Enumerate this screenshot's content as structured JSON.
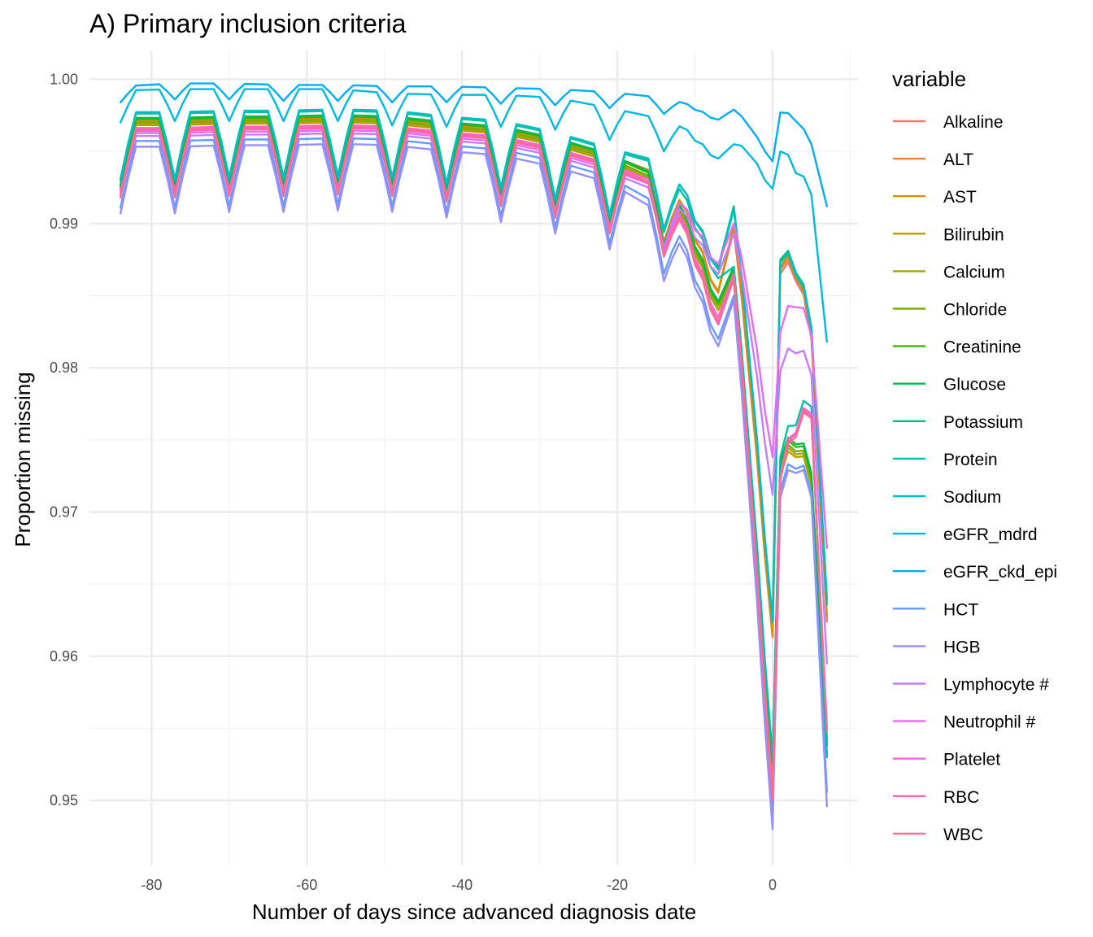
{
  "chart_data": {
    "type": "line",
    "title": "A) Primary inclusion criteria",
    "xlabel": "Number of days since advanced diagnosis date",
    "ylabel": "Proportion missing",
    "xlim": [
      -88,
      11
    ],
    "ylim": [
      0.9455,
      1.002
    ],
    "x_ticks": [
      -80,
      -60,
      -40,
      -20,
      0
    ],
    "x_tick_labels": [
      "-80",
      "-60",
      "-40",
      "-20",
      "0"
    ],
    "y_ticks": [
      0.95,
      0.96,
      0.97,
      0.98,
      0.99,
      1.0
    ],
    "y_tick_labels": [
      "0.95",
      "0.96",
      "0.97",
      "0.98",
      "0.99",
      "1.00"
    ],
    "grid": true,
    "legend_title": "variable",
    "legend_position": "right",
    "x": [
      -84,
      -77,
      -70,
      -63,
      -56,
      -49,
      -42,
      -35,
      -28,
      -21,
      -14,
      -7,
      -5,
      0,
      1,
      3,
      5,
      7
    ],
    "series": [
      {
        "name": "Alkaline",
        "color": "#F8766D",
        "base": [
          0.995,
          0.995,
          0.9951,
          0.9951,
          0.9952,
          0.9951,
          0.9947,
          0.9944,
          0.9936,
          0.9925,
          0.9911,
          0.9853,
          0.9895,
          0.9613,
          0.9865,
          0.986,
          0.982,
          0.9624
        ],
        "amp": 0.0025
      },
      {
        "name": "ALT",
        "color": "#EA8331",
        "base": [
          0.995,
          0.995,
          0.9951,
          0.9951,
          0.9952,
          0.9951,
          0.9947,
          0.9944,
          0.9936,
          0.9925,
          0.9912,
          0.9852,
          0.9898,
          0.9614,
          0.9868,
          0.9862,
          0.9822,
          0.9626
        ],
        "amp": 0.0025
      },
      {
        "name": "AST",
        "color": "#D89000",
        "base": [
          0.9951,
          0.9951,
          0.9952,
          0.9952,
          0.9953,
          0.9952,
          0.9948,
          0.9945,
          0.9937,
          0.9926,
          0.9912,
          0.9853,
          0.9899,
          0.9615,
          0.987,
          0.9864,
          0.9824,
          0.9628
        ],
        "amp": 0.0025
      },
      {
        "name": "Bilirubin",
        "color": "#C09B00",
        "base": [
          0.9947,
          0.9947,
          0.9948,
          0.9948,
          0.9949,
          0.9948,
          0.9944,
          0.9941,
          0.9933,
          0.9922,
          0.9905,
          0.984,
          0.986,
          0.952,
          0.9725,
          0.9738,
          0.9718,
          0.954
        ],
        "amp": 0.0025
      },
      {
        "name": "Calcium",
        "color": "#A3A500",
        "base": [
          0.9948,
          0.9948,
          0.9949,
          0.9949,
          0.995,
          0.9949,
          0.9945,
          0.9942,
          0.9934,
          0.9923,
          0.9906,
          0.984,
          0.9862,
          0.9523,
          0.9728,
          0.974,
          0.972,
          0.9543
        ],
        "amp": 0.0025
      },
      {
        "name": "Chloride",
        "color": "#7CAE00",
        "base": [
          0.9949,
          0.9949,
          0.995,
          0.995,
          0.9951,
          0.995,
          0.9946,
          0.9943,
          0.9935,
          0.9924,
          0.9907,
          0.9843,
          0.9865,
          0.9524,
          0.973,
          0.9742,
          0.9722,
          0.954
        ],
        "amp": 0.0025
      },
      {
        "name": "Creatinine",
        "color": "#39B600",
        "base": [
          0.9951,
          0.9951,
          0.9952,
          0.9952,
          0.9953,
          0.9952,
          0.9948,
          0.9945,
          0.9937,
          0.9926,
          0.9909,
          0.9845,
          0.9868,
          0.9526,
          0.9733,
          0.9745,
          0.9725,
          0.9538
        ],
        "amp": 0.0025
      },
      {
        "name": "Glucose",
        "color": "#00BB4E",
        "base": [
          0.9952,
          0.9952,
          0.9953,
          0.9953,
          0.9954,
          0.9953,
          0.9949,
          0.9946,
          0.9938,
          0.9927,
          0.991,
          0.9846,
          0.987,
          0.9528,
          0.9735,
          0.9747,
          0.9727,
          0.9532
        ],
        "amp": 0.0025
      },
      {
        "name": "Potassium",
        "color": "#00BF7D",
        "base": [
          0.9955,
          0.9955,
          0.9956,
          0.9956,
          0.9957,
          0.9956,
          0.9952,
          0.9949,
          0.9941,
          0.993,
          0.992,
          0.987,
          0.9912,
          0.9625,
          0.9875,
          0.9866,
          0.9828,
          0.964
        ],
        "amp": 0.0025
      },
      {
        "name": "Protein",
        "color": "#00C1A3",
        "base": [
          0.9955,
          0.9955,
          0.9956,
          0.9956,
          0.9957,
          0.9956,
          0.9952,
          0.9949,
          0.9941,
          0.993,
          0.9919,
          0.9862,
          0.987,
          0.953,
          0.9738,
          0.976,
          0.9773,
          0.953
        ],
        "amp": 0.0025
      },
      {
        "name": "Sodium",
        "color": "#00BFC4",
        "base": [
          0.9956,
          0.9956,
          0.9957,
          0.9957,
          0.9958,
          0.9957,
          0.9953,
          0.995,
          0.9942,
          0.9931,
          0.9921,
          0.9868,
          0.991,
          0.9624,
          0.9873,
          0.9864,
          0.9826,
          0.9636
        ],
        "amp": 0.0025
      },
      {
        "name": "eGFR_mdrd",
        "color": "#00B9E3",
        "base": [
          0.9982,
          0.9983,
          0.9983,
          0.9983,
          0.9983,
          0.998,
          0.9979,
          0.9979,
          0.9977,
          0.997,
          0.9962,
          0.9945,
          0.9955,
          0.9924,
          0.995,
          0.9935,
          0.992,
          0.9818
        ],
        "amp": 0.0012
      },
      {
        "name": "eGFR_ckd_epi",
        "color": "#00ADFA",
        "base": [
          0.999,
          0.9992,
          0.9992,
          0.9991,
          0.9991,
          0.999,
          0.999,
          0.9989,
          0.9988,
          0.9986,
          0.9982,
          0.9972,
          0.9979,
          0.9943,
          0.9977,
          0.9971,
          0.9955,
          0.9912
        ],
        "amp": 0.0006
      },
      {
        "name": "HCT",
        "color": "#619CFF",
        "base": [
          0.9936,
          0.9936,
          0.9937,
          0.9937,
          0.9938,
          0.9937,
          0.9933,
          0.993,
          0.9922,
          0.9911,
          0.989,
          0.982,
          0.985,
          0.949,
          0.9715,
          0.973,
          0.9713,
          0.9506
        ],
        "amp": 0.0025
      },
      {
        "name": "HGB",
        "color": "#9590FF",
        "base": [
          0.9932,
          0.9932,
          0.9933,
          0.9933,
          0.9934,
          0.9933,
          0.9929,
          0.9926,
          0.9918,
          0.9907,
          0.9885,
          0.9815,
          0.9847,
          0.948,
          0.971,
          0.9727,
          0.971,
          0.9496
        ],
        "amp": 0.0025
      },
      {
        "name": "Lymphocyte #",
        "color": "#C77CFF",
        "base": [
          0.9942,
          0.9942,
          0.9943,
          0.9943,
          0.9944,
          0.9943,
          0.9939,
          0.9936,
          0.9928,
          0.9917,
          0.9902,
          0.9865,
          0.9893,
          0.9712,
          0.9798,
          0.981,
          0.9795,
          0.9595
        ],
        "amp": 0.0022
      },
      {
        "name": "Neutrophil #",
        "color": "#E76BF3",
        "base": [
          0.9944,
          0.9944,
          0.9945,
          0.9945,
          0.9946,
          0.9945,
          0.9941,
          0.9938,
          0.993,
          0.9919,
          0.9905,
          0.9872,
          0.99,
          0.9738,
          0.9825,
          0.9842,
          0.9822,
          0.9675
        ],
        "amp": 0.0022
      },
      {
        "name": "Platelet",
        "color": "#FA62DB",
        "base": [
          0.9945,
          0.9945,
          0.9946,
          0.9946,
          0.9947,
          0.9946,
          0.9942,
          0.9939,
          0.9931,
          0.992,
          0.9905,
          0.9835,
          0.9865,
          0.9505,
          0.9725,
          0.9755,
          0.9768,
          0.955
        ],
        "amp": 0.0025
      },
      {
        "name": "RBC",
        "color": "#FF62BC",
        "base": [
          0.9943,
          0.9943,
          0.9944,
          0.9944,
          0.9945,
          0.9944,
          0.994,
          0.9937,
          0.9929,
          0.9918,
          0.9902,
          0.983,
          0.9862,
          0.95,
          0.9722,
          0.9752,
          0.9765,
          0.9548
        ],
        "amp": 0.0025
      },
      {
        "name": "WBC",
        "color": "#FF6C91",
        "base": [
          0.9944,
          0.9944,
          0.9945,
          0.9945,
          0.9946,
          0.9945,
          0.9941,
          0.9938,
          0.993,
          0.9919,
          0.9903,
          0.9832,
          0.9863,
          0.9502,
          0.9724,
          0.9754,
          0.9766,
          0.9549
        ],
        "amp": 0.0025
      }
    ]
  }
}
